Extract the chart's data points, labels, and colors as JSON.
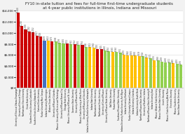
{
  "title_line1": "FY10 in-state tuition and fees for full-time first-time undergraduate students",
  "title_line2": "at 4-year public institutions in Illinois, Indiana and Missouri",
  "title_fontsize": 4.0,
  "bars": [
    {
      "label": "University of Illinois at Urbana-Champaign",
      "value": 13658,
      "color": "#cc0000"
    },
    {
      "label": "University of Illinois at Chicago",
      "value": 11208,
      "color": "#cc0000"
    },
    {
      "label": "Northwestern Illinois University",
      "value": 10588,
      "color": "#cc0000"
    },
    {
      "label": "Illinois State University",
      "value": 10182,
      "color": "#cc0000"
    },
    {
      "label": "Southern Illinois University Carbondale",
      "value": 10052,
      "color": "#cc0000"
    },
    {
      "label": "Southern Illinois University Edwardsville",
      "value": 9517,
      "color": "#cc0000"
    },
    {
      "label": "Eastern Illinois University",
      "value": 9308,
      "color": "#cc0000"
    },
    {
      "label": "Purdue University Main Campus",
      "value": 8638,
      "color": "#4472c4"
    },
    {
      "label": "Indiana University Bloomington",
      "value": 8622,
      "color": "#ffc000"
    },
    {
      "label": "Western Illinois University",
      "value": 8475,
      "color": "#cc0000"
    },
    {
      "label": "University of Missouri Columbia",
      "value": 8388,
      "color": "#92d050"
    },
    {
      "label": "Missouri University of Science and Technology",
      "value": 8198,
      "color": "#92d050"
    },
    {
      "label": "University of Missouri Kansas City",
      "value": 8082,
      "color": "#92d050"
    },
    {
      "label": "Chicago State University",
      "value": 8011,
      "color": "#cc0000"
    },
    {
      "label": "Missouri University of Missouri St. Louis",
      "value": 7941,
      "color": "#92d050"
    },
    {
      "label": "Governors State University",
      "value": 7914,
      "color": "#cc0000"
    },
    {
      "label": "University of Missouri Rolla",
      "value": 7801,
      "color": "#92d050"
    },
    {
      "label": "Missouri State University at West Plains",
      "value": 7756,
      "color": "#cc0000"
    },
    {
      "label": "University of Missouri at Columbia",
      "value": 7406,
      "color": "#92d050"
    },
    {
      "label": "Indiana University-Purdue University Indianapolis",
      "value": 7412,
      "color": "#ffc000"
    },
    {
      "label": "Indiana State University",
      "value": 7350,
      "color": "#ffc000"
    },
    {
      "label": "Northeastern Illinois University",
      "value": 7090,
      "color": "#cc0000"
    },
    {
      "label": "Northeastern Illinois University",
      "value": 7005,
      "color": "#cc0000"
    },
    {
      "label": "University of Central Missouri",
      "value": 6820,
      "color": "#92d050"
    },
    {
      "label": "University of Missouri State University",
      "value": 6654,
      "color": "#92d050"
    },
    {
      "label": "Ball State University",
      "value": 6582,
      "color": "#ffc000"
    },
    {
      "label": "Truman State University",
      "value": 6564,
      "color": "#92d050"
    },
    {
      "label": "Southeast Missouri State University",
      "value": 6351,
      "color": "#92d050"
    },
    {
      "label": "Indiana University Purdue University Fort Wayne",
      "value": 6070,
      "color": "#ffc000"
    },
    {
      "label": "Indiana University Northwest",
      "value": 5962,
      "color": "#ffc000"
    },
    {
      "label": "Purdue University Calumet Campus",
      "value": 5930,
      "color": "#ffc000"
    },
    {
      "label": "Indiana University Columbus",
      "value": 5881,
      "color": "#ffc000"
    },
    {
      "label": "Indiana University South Bend",
      "value": 5839,
      "color": "#ffc000"
    },
    {
      "label": "Northwest Missouri State University",
      "value": 5746,
      "color": "#92d050"
    },
    {
      "label": "University of Southern Indiana",
      "value": 5517,
      "color": "#ffc000"
    },
    {
      "label": "Northwest Missouri State University B",
      "value": 5372,
      "color": "#92d050"
    },
    {
      "label": "Indiana University East",
      "value": 5076,
      "color": "#ffc000"
    },
    {
      "label": "Missouri Western State University",
      "value": 4988,
      "color": "#92d050"
    },
    {
      "label": "Missouri Southern State University",
      "value": 4809,
      "color": "#92d050"
    },
    {
      "label": "Lincoln University",
      "value": 4680,
      "color": "#92d050"
    },
    {
      "label": "Missouri State University-West Plains",
      "value": 4611,
      "color": "#92d050"
    },
    {
      "label": "Vincennes University",
      "value": 4460,
      "color": "#ffc000"
    },
    {
      "label": "Missouri Southern University",
      "value": 4400,
      "color": "#92d050"
    },
    {
      "label": "Harris-Stowe State University",
      "value": 4196,
      "color": "#92d050"
    }
  ],
  "ylim": [
    0,
    14000
  ],
  "yticks": [
    0,
    2000,
    4000,
    6000,
    8000,
    10000,
    12000,
    14000
  ],
  "ytick_labels": [
    "$0",
    "$2,000",
    "$4,000",
    "$6,000",
    "$8,000",
    "$10,000",
    "$12,000",
    "$14,000"
  ],
  "bg_color": "#f2f2f2",
  "plot_bg_color": "#ffffff",
  "grid_color": "#d9d9d9",
  "bar_width": 0.75
}
